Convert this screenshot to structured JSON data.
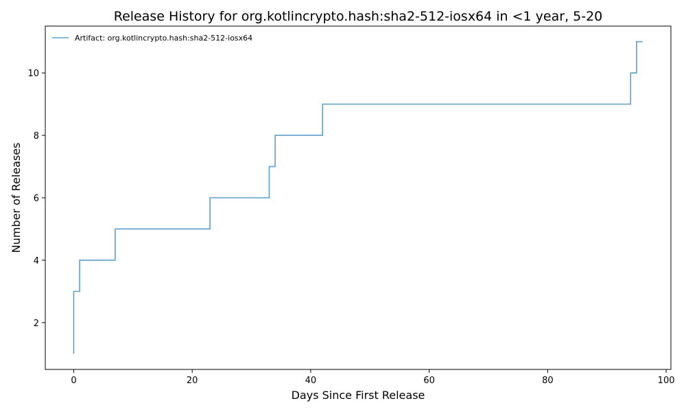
{
  "chart_data": {
    "type": "line",
    "step": "post",
    "title": "Release History for org.kotlincrypto.hash:sha2-512-iosx64 in <1 year, 5-20",
    "xlabel": "Days Since First Release",
    "ylabel": "Number of Releases",
    "xlim": [
      -4.8,
      100.8
    ],
    "ylim": [
      0.5,
      11.5
    ],
    "xticks": [
      0,
      20,
      40,
      60,
      80,
      100
    ],
    "yticks": [
      2,
      4,
      6,
      8,
      10
    ],
    "grid": false,
    "legend_position": "upper-left",
    "series": [
      {
        "name": "Artifact: org.kotlincrypto.hash:sha2-512-iosx64",
        "color": "#5B9FD0",
        "x": [
          0,
          0,
          0,
          1,
          7,
          23,
          33,
          34,
          42,
          94,
          95,
          96
        ],
        "y": [
          1,
          2,
          3,
          4,
          5,
          6,
          7,
          8,
          9,
          10,
          11,
          11
        ]
      }
    ]
  }
}
